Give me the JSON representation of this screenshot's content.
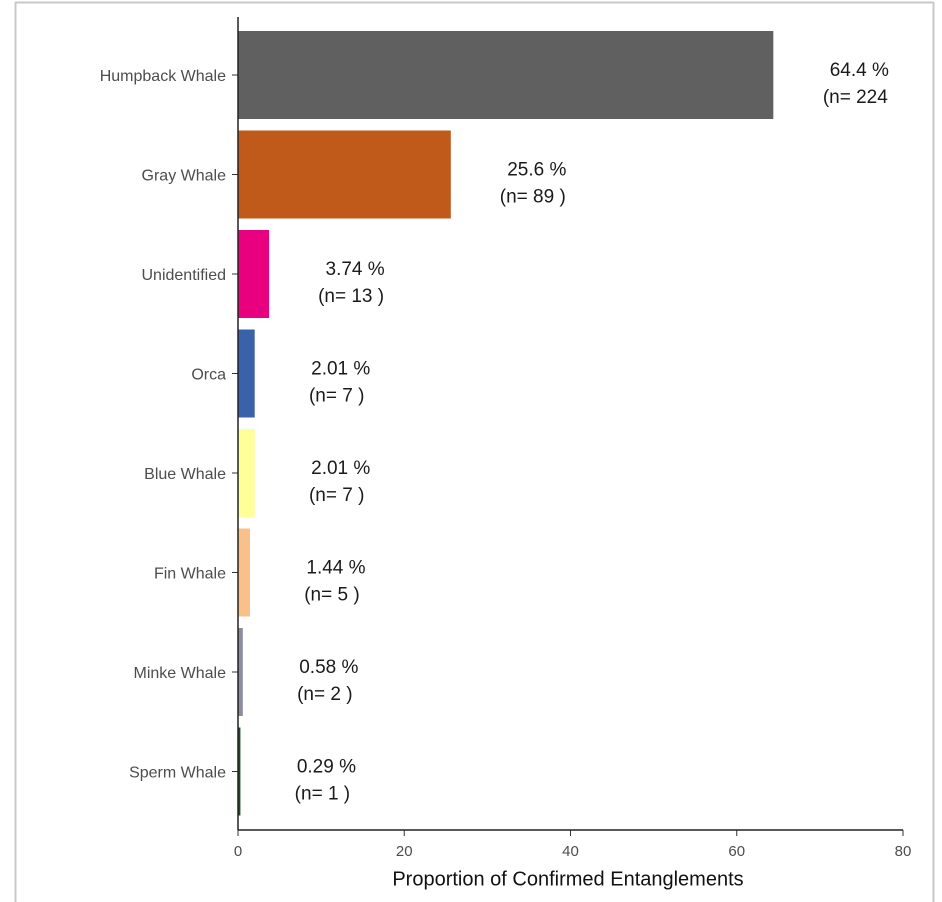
{
  "chart_data": {
    "type": "bar",
    "orientation": "horizontal",
    "x_label": "Proportion of Confirmed Entanglements",
    "categories": [
      "Humpback Whale",
      "Gray Whale",
      "Unidentified",
      "Orca",
      "Blue Whale",
      "Fin Whale",
      "Minke Whale",
      "Sperm Whale"
    ],
    "values": [
      64.4,
      25.6,
      3.74,
      2.01,
      2.01,
      1.44,
      0.58,
      0.29
    ],
    "value_labels": [
      "64.4 %",
      "25.6 %",
      "3.74 %",
      "2.01 %",
      "2.01 %",
      "1.44 %",
      "0.58 %",
      "0.29 %"
    ],
    "count_labels": [
      "(n= 224",
      "(n= 89 )",
      "(n= 13 )",
      "(n= 7 )",
      "(n= 7 )",
      "(n= 5 )",
      "(n= 2 )",
      "(n= 1 )"
    ],
    "colors": [
      "#606060",
      "#c05a1b",
      "#e8007f",
      "#3a62a8",
      "#ffff99",
      "#f9c08a",
      "#8d8da0",
      "#1c4a1c"
    ],
    "xlim": [
      0,
      80
    ],
    "xticks": [
      0,
      20,
      40,
      60,
      80
    ]
  }
}
